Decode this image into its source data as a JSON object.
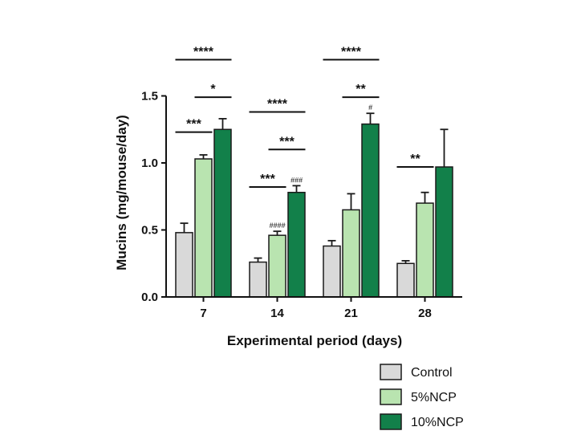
{
  "chart_data": {
    "type": "bar",
    "title": "",
    "xlabel": "Experimental period (days)",
    "ylabel": "Mucins (mg/mouse/day)",
    "ylim": [
      0,
      1.5
    ],
    "yticks": [
      "0.0",
      "0.5",
      "1.0",
      "1.5"
    ],
    "categories": [
      "7",
      "14",
      "21",
      "28"
    ],
    "series": [
      {
        "name": "Control",
        "values": [
          0.48,
          0.26,
          0.38,
          0.25
        ],
        "errors": [
          0.07,
          0.03,
          0.04,
          0.02
        ],
        "color": "#d9d9d9"
      },
      {
        "name": "5%NCP",
        "values": [
          1.03,
          0.46,
          0.65,
          0.7
        ],
        "errors": [
          0.03,
          0.03,
          0.12,
          0.08
        ],
        "color": "#b9e4b0"
      },
      {
        "name": "10%NCP",
        "values": [
          1.25,
          0.78,
          1.29,
          0.97
        ],
        "errors": [
          0.08,
          0.05,
          0.08,
          0.28
        ],
        "color": "#12804a"
      }
    ],
    "significance": [
      {
        "group": 0,
        "from": 0,
        "to": 1,
        "label": "***",
        "y": 1.23
      },
      {
        "group": 0,
        "from": 1,
        "to": 2,
        "label": "*",
        "y": 1.49
      },
      {
        "group": 0,
        "from": 0,
        "to": 2,
        "label": "****",
        "y": 1.77
      },
      {
        "group": 1,
        "from": 0,
        "to": 1,
        "label": "***",
        "y": 0.82
      },
      {
        "group": 1,
        "from": 1,
        "to": 2,
        "label": "***",
        "y": 1.1
      },
      {
        "group": 1,
        "from": 0,
        "to": 2,
        "label": "****",
        "y": 1.38
      },
      {
        "group": 2,
        "from": 1,
        "to": 2,
        "label": "**",
        "y": 1.49
      },
      {
        "group": 2,
        "from": 0,
        "to": 2,
        "label": "****",
        "y": 1.77
      },
      {
        "group": 3,
        "from": 0,
        "to": 1,
        "label": "**",
        "y": 0.97
      }
    ],
    "hash_marks": [
      {
        "group": 1,
        "series": 1,
        "label": "####"
      },
      {
        "group": 1,
        "series": 2,
        "label": "###"
      },
      {
        "group": 2,
        "series": 2,
        "label": "#"
      }
    ],
    "legend_position": "bottom-right"
  }
}
